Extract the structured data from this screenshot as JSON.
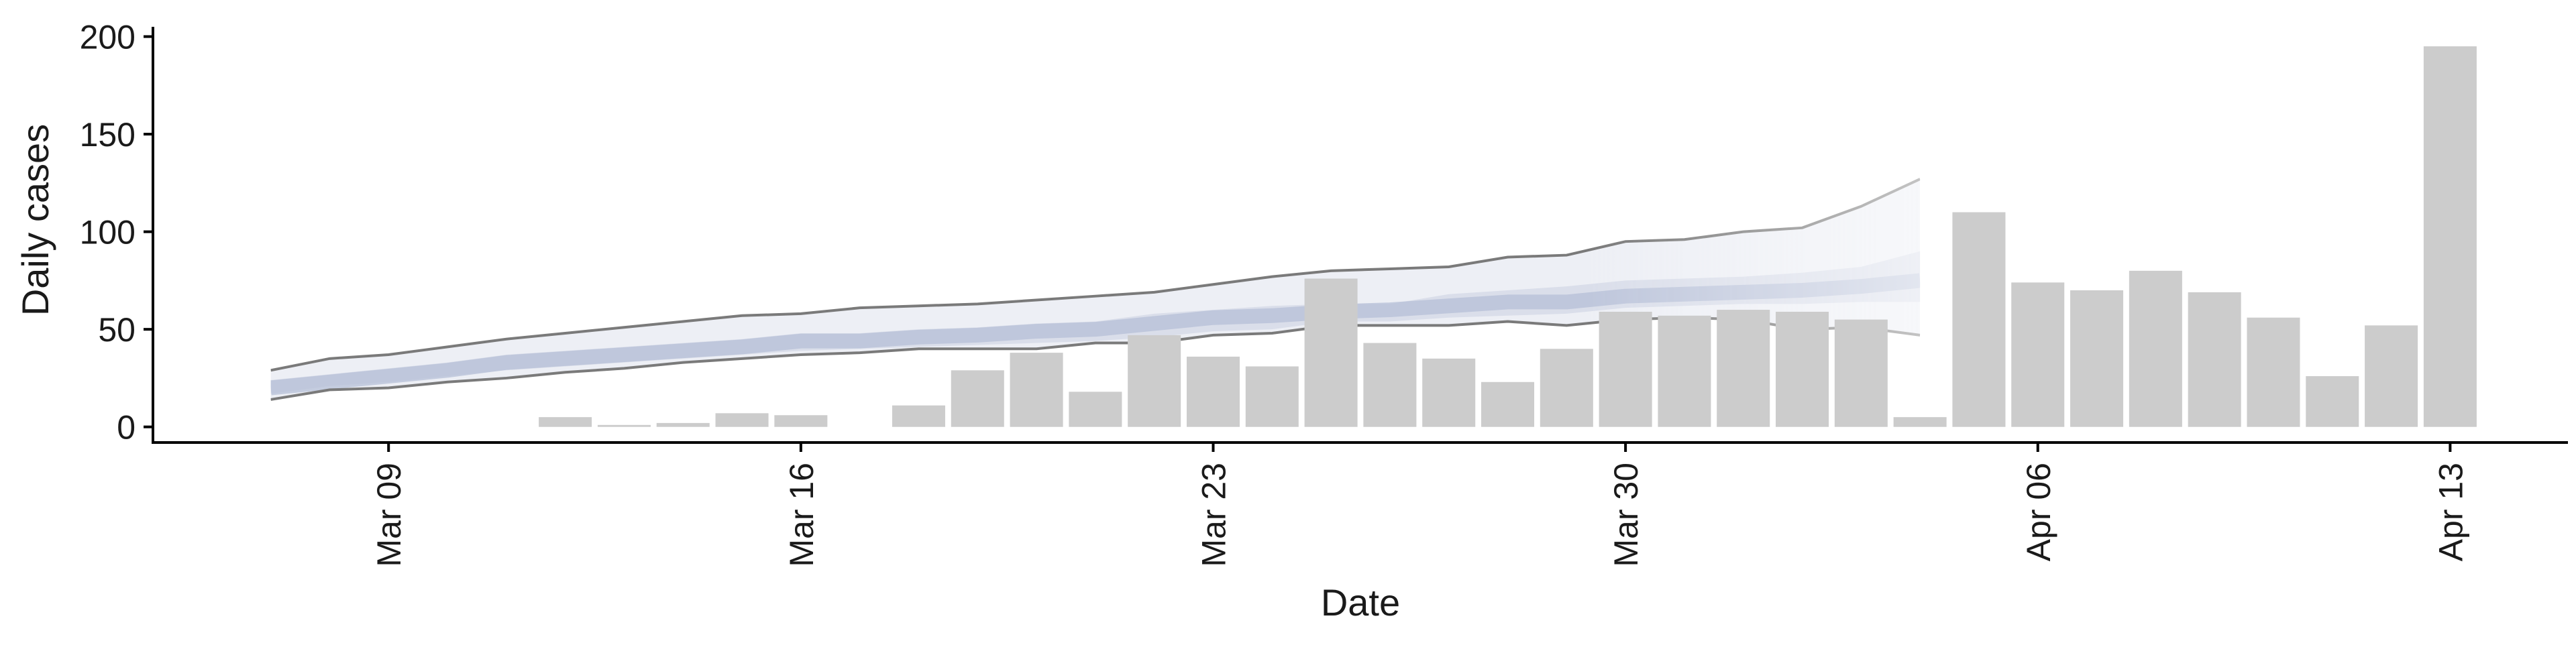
{
  "chart_data": {
    "type": "bar",
    "xlabel": "Date",
    "ylabel": "Daily cases",
    "ylim": [
      -8,
      205
    ],
    "yticks": [
      0,
      50,
      100,
      150,
      200
    ],
    "xticks": [
      {
        "date": "2020-03-09",
        "label": "Mar 09"
      },
      {
        "date": "2020-03-16",
        "label": "Mar 16"
      },
      {
        "date": "2020-03-23",
        "label": "Mar 23"
      },
      {
        "date": "2020-03-30",
        "label": "Mar 30"
      },
      {
        "date": "2020-04-06",
        "label": "Apr 06"
      },
      {
        "date": "2020-04-13",
        "label": "Apr 13"
      }
    ],
    "xlim": [
      "2020-03-05",
      "2020-04-15"
    ],
    "grid": false,
    "legend": "none",
    "colors": {
      "bars": "#cccccc",
      "band_outer": "#dfe1ec",
      "band_inner": "#c3c9dd",
      "median_line": "#b4bdd6",
      "bound_lines": "#7a7a7a"
    },
    "bars": [
      {
        "date": "2020-03-12",
        "value": 5
      },
      {
        "date": "2020-03-13",
        "value": 1
      },
      {
        "date": "2020-03-14",
        "value": 2
      },
      {
        "date": "2020-03-15",
        "value": 7
      },
      {
        "date": "2020-03-16",
        "value": 6
      },
      {
        "date": "2020-03-18",
        "value": 11
      },
      {
        "date": "2020-03-19",
        "value": 29
      },
      {
        "date": "2020-03-20",
        "value": 38
      },
      {
        "date": "2020-03-21",
        "value": 18
      },
      {
        "date": "2020-03-22",
        "value": 47
      },
      {
        "date": "2020-03-23",
        "value": 36
      },
      {
        "date": "2020-03-24",
        "value": 31
      },
      {
        "date": "2020-03-25",
        "value": 76
      },
      {
        "date": "2020-03-26",
        "value": 43
      },
      {
        "date": "2020-03-27",
        "value": 35
      },
      {
        "date": "2020-03-28",
        "value": 23
      },
      {
        "date": "2020-03-29",
        "value": 40
      },
      {
        "date": "2020-03-30",
        "value": 59
      },
      {
        "date": "2020-03-31",
        "value": 57
      },
      {
        "date": "2020-04-01",
        "value": 60
      },
      {
        "date": "2020-04-02",
        "value": 59
      },
      {
        "date": "2020-04-03",
        "value": 55
      },
      {
        "date": "2020-04-04",
        "value": 5
      },
      {
        "date": "2020-04-05",
        "value": 110
      },
      {
        "date": "2020-04-06",
        "value": 74
      },
      {
        "date": "2020-04-07",
        "value": 70
      },
      {
        "date": "2020-04-08",
        "value": 80
      },
      {
        "date": "2020-04-09",
        "value": 69
      },
      {
        "date": "2020-04-10",
        "value": 56
      },
      {
        "date": "2020-04-11",
        "value": 26
      },
      {
        "date": "2020-04-12",
        "value": 52
      },
      {
        "date": "2020-04-13",
        "value": 195
      }
    ],
    "estimate_band": {
      "dates": [
        "2020-03-07",
        "2020-03-08",
        "2020-03-09",
        "2020-03-10",
        "2020-03-11",
        "2020-03-12",
        "2020-03-13",
        "2020-03-14",
        "2020-03-15",
        "2020-03-16",
        "2020-03-17",
        "2020-03-18",
        "2020-03-19",
        "2020-03-20",
        "2020-03-21",
        "2020-03-22",
        "2020-03-23",
        "2020-03-24",
        "2020-03-25",
        "2020-03-26",
        "2020-03-27",
        "2020-03-28",
        "2020-03-29",
        "2020-03-30",
        "2020-03-31",
        "2020-04-01",
        "2020-04-02",
        "2020-04-03",
        "2020-04-04"
      ],
      "upper": [
        29,
        35,
        37,
        41,
        45,
        48,
        51,
        54,
        57,
        58,
        61,
        62,
        63,
        65,
        67,
        69,
        73,
        77,
        80,
        81,
        82,
        87,
        88,
        95,
        96,
        100,
        102,
        113,
        127
      ],
      "lower": [
        14,
        19,
        20,
        23,
        25,
        28,
        30,
        33,
        35,
        37,
        38,
        40,
        40,
        40,
        43,
        43,
        47,
        48,
        52,
        52,
        52,
        54,
        52,
        55,
        56,
        55,
        50,
        51,
        47
      ],
      "inner_upper": [
        24,
        27,
        30,
        33,
        37,
        39,
        41,
        43,
        45,
        48,
        48,
        50,
        51,
        53,
        54,
        58,
        60,
        62,
        63,
        63,
        68,
        70,
        72,
        75,
        76,
        77,
        79,
        82,
        90
      ],
      "inner_lower": [
        17,
        21,
        23,
        26,
        29,
        31,
        33,
        35,
        37,
        39,
        40,
        41,
        42,
        43,
        44,
        46,
        49,
        50,
        54,
        54,
        56,
        57,
        58,
        61,
        62,
        63,
        63,
        64,
        64
      ],
      "median": [
        20,
        23,
        26,
        29,
        33,
        35,
        37,
        39,
        41,
        44,
        44,
        46,
        47,
        49,
        50,
        53,
        56,
        57,
        59,
        60,
        62,
        64,
        64,
        67,
        68,
        69,
        70,
        72,
        75
      ]
    }
  }
}
